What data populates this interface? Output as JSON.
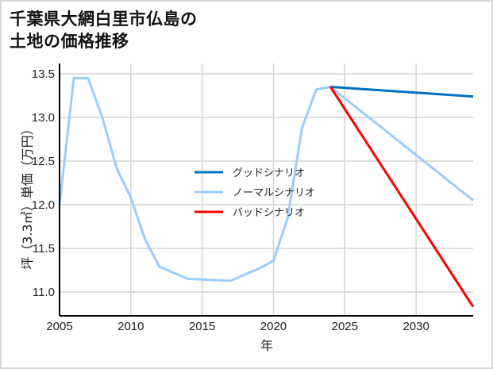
{
  "title_line1": "千葉県大網白里市仏島の",
  "title_line2": "土地の価格推移",
  "chart_data": {
    "type": "line",
    "title": "千葉県大網白里市仏島の土地の価格推移",
    "xlabel": "年",
    "ylabel": "坪（3.3㎡）単価（万円）",
    "xlim": [
      2005,
      2034
    ],
    "ylim": [
      10.7,
      13.6
    ],
    "x_ticks": [
      "2005",
      "2010",
      "2015",
      "2020",
      "2025",
      "2030"
    ],
    "y_ticks": [
      "11.0",
      "11.5",
      "12.0",
      "12.5",
      "13.0",
      "13.5"
    ],
    "grid": true,
    "legend_position": "center",
    "series": [
      {
        "name": "グッドシナリオ",
        "color": "#0070c0",
        "x": [
          2024,
          2034
        ],
        "values": [
          13.35,
          13.24
        ]
      },
      {
        "name": "ノーマルシナリオ",
        "color": "#99ccff",
        "x": [
          2005,
          2006,
          2007,
          2008,
          2009,
          2010,
          2011,
          2012,
          2014,
          2017,
          2018,
          2019,
          2020,
          2021,
          2022,
          2023,
          2024,
          2034
        ],
        "values": [
          12.0,
          13.45,
          13.45,
          13.0,
          12.42,
          12.08,
          11.6,
          11.29,
          11.15,
          11.13,
          11.2,
          11.27,
          11.36,
          11.85,
          12.88,
          13.32,
          13.35,
          12.05
        ]
      },
      {
        "name": "バッドシナリオ",
        "color": "#ff0000",
        "x": [
          2024,
          2034
        ],
        "values": [
          13.35,
          10.83
        ]
      }
    ]
  }
}
